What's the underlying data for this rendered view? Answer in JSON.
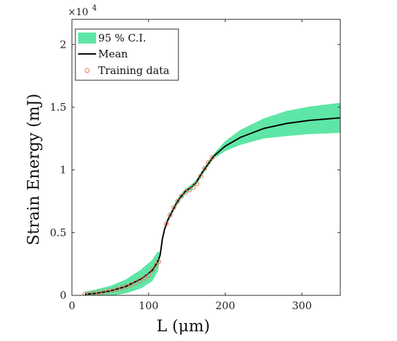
{
  "chart_data": {
    "type": "line",
    "xlabel": "L (μm)",
    "ylabel": "Strain Energy (mJ)",
    "multiplier": "×10",
    "multiplier_exp": "4",
    "xlim": [
      0,
      350
    ],
    "ylim": [
      0,
      2.2
    ],
    "x_ticks": [
      0,
      100,
      200,
      300
    ],
    "x_tick_labels": [
      "0",
      "100",
      "200",
      "300"
    ],
    "y_ticks": [
      0,
      0.5,
      1,
      1.5,
      2
    ],
    "y_tick_labels": [
      "0",
      "0.5",
      "1",
      "1.5",
      "2"
    ],
    "legend": {
      "position": "top-left",
      "entries": [
        "95 % C.I.",
        "Mean",
        "Training data"
      ]
    },
    "colors": {
      "ci": "#5ee6a6",
      "mean": "#000000",
      "training": "#e8745a",
      "axis": "#262626"
    },
    "series": [
      {
        "name": "Mean",
        "x": [
          17,
          30,
          50,
          70,
          90,
          105,
          112,
          115,
          118,
          121,
          125,
          130,
          135,
          140,
          148,
          155,
          162,
          170,
          178,
          185,
          200,
          220,
          250,
          280,
          310,
          350
        ],
        "y": [
          0.008,
          0.015,
          0.035,
          0.07,
          0.13,
          0.2,
          0.27,
          0.32,
          0.45,
          0.53,
          0.6,
          0.66,
          0.72,
          0.77,
          0.83,
          0.86,
          0.9,
          0.98,
          1.05,
          1.11,
          1.19,
          1.26,
          1.33,
          1.37,
          1.395,
          1.415
        ]
      },
      {
        "name": "95 % C.I.",
        "x": [
          17,
          30,
          50,
          70,
          90,
          105,
          112,
          115,
          118,
          121,
          125,
          130,
          135,
          140,
          148,
          155,
          162,
          170,
          178,
          185,
          200,
          220,
          250,
          280,
          310,
          350
        ],
        "upper": [
          0.03,
          0.045,
          0.075,
          0.125,
          0.205,
          0.285,
          0.35,
          0.34,
          0.47,
          0.55,
          0.62,
          0.68,
          0.74,
          0.79,
          0.85,
          0.88,
          0.92,
          1.0,
          1.07,
          1.13,
          1.23,
          1.32,
          1.41,
          1.47,
          1.505,
          1.535
        ],
        "lower": [
          -0.01,
          -0.015,
          -0.005,
          0.015,
          0.055,
          0.115,
          0.19,
          0.3,
          0.43,
          0.51,
          0.58,
          0.64,
          0.7,
          0.75,
          0.81,
          0.84,
          0.88,
          0.96,
          1.03,
          1.09,
          1.15,
          1.2,
          1.25,
          1.27,
          1.285,
          1.295
        ]
      }
    ],
    "training_data": {
      "name": "Training data",
      "x": [
        17,
        23,
        29,
        35,
        41,
        47,
        53,
        59,
        65,
        71,
        77,
        83,
        89,
        95,
        100,
        105,
        110,
        113,
        123,
        128,
        133,
        138,
        143,
        148,
        153,
        158,
        163,
        168,
        173,
        178,
        183
      ],
      "y": [
        0.008,
        0.011,
        0.016,
        0.021,
        0.026,
        0.033,
        0.04,
        0.049,
        0.06,
        0.072,
        0.086,
        0.1,
        0.118,
        0.138,
        0.16,
        0.2,
        0.24,
        0.27,
        0.57,
        0.64,
        0.7,
        0.75,
        0.79,
        0.82,
        0.84,
        0.86,
        0.89,
        0.95,
        1.01,
        1.06,
        1.1
      ]
    }
  }
}
